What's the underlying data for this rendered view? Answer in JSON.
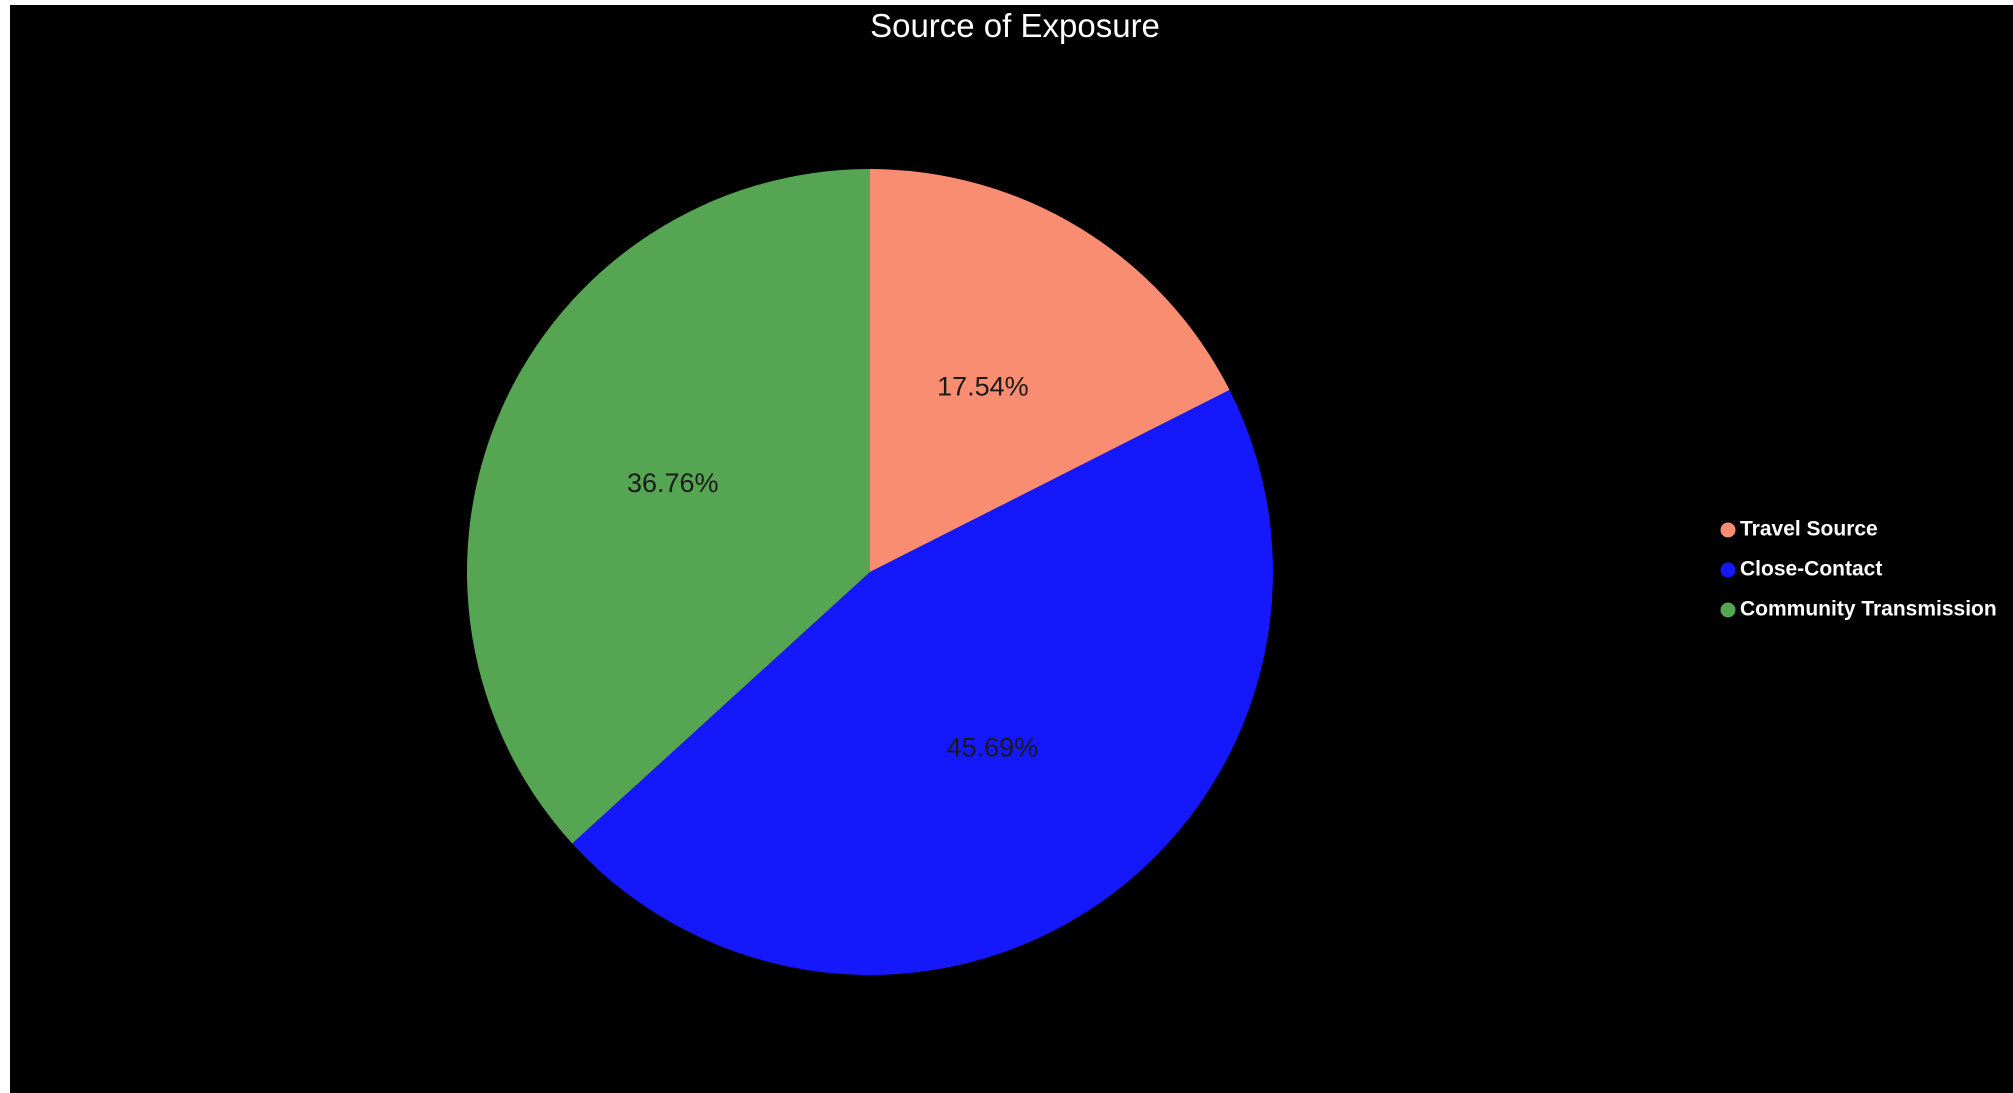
{
  "chart_data": {
    "type": "pie",
    "title": "Source of Exposure",
    "slices": [
      {
        "label": "Travel Source",
        "value": 17.54,
        "display": "17.54%",
        "color": "#f98d71"
      },
      {
        "label": "Close-Contact",
        "value": 45.69,
        "display": "45.69%",
        "color": "#1418fb"
      },
      {
        "label": "Community Transmission",
        "value": 36.76,
        "display": "36.76%",
        "color": "#56a553"
      }
    ],
    "legend_position": "right",
    "background": "#000000"
  }
}
